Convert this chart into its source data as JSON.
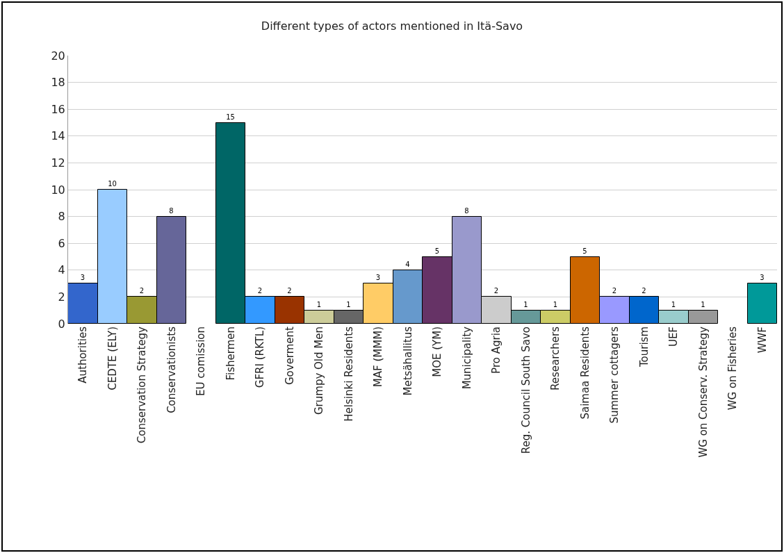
{
  "chart_data": {
    "type": "bar",
    "title": "Different types of actors mentioned in Itä-Savo",
    "categories": [
      "Authorities",
      "CEDTE (ELY)",
      "Conservation Strategy",
      "Conservationists",
      "EU comission",
      "Fishermen",
      "GFRI (RKTL)",
      "Goverment",
      "Grumpy Old Men",
      "Helsinki Residents",
      "MAF (MMM)",
      "Metsähallitus",
      "MOE (YM)",
      "Municipality",
      "Pro Agria",
      "Reg. Council South Savo",
      "Researchers",
      "Saimaa Residents",
      "Summer cottagers",
      "Tourism",
      "UEF",
      "WG on Conserv. Strategy",
      "WG on Fisheries",
      "WWF"
    ],
    "values": [
      3,
      10,
      2,
      8,
      0,
      15,
      2,
      2,
      1,
      1,
      3,
      4,
      5,
      8,
      2,
      1,
      1,
      5,
      2,
      2,
      1,
      1,
      0,
      3
    ],
    "value_labels": [
      "3",
      "10",
      "2",
      "8",
      null,
      "15",
      "2",
      "2",
      "1",
      "1",
      "3",
      "4",
      "5",
      "8",
      "2",
      "1",
      "1",
      "5",
      "2",
      "2",
      "1",
      "1",
      null,
      "3"
    ],
    "colors": [
      "#3366cc",
      "#99ccff",
      "#999933",
      "#666699",
      null,
      "#006666",
      "#3399ff",
      "#993300",
      "#cccc99",
      "#666666",
      "#ffcc66",
      "#6699cc",
      "#663366",
      "#9999cc",
      "#cccccc",
      "#669999",
      "#cccc66",
      "#cc6600",
      "#9999ff",
      "#0066cc",
      "#99cccc",
      "#999999",
      null,
      "#009999"
    ],
    "ylim": [
      0,
      20
    ],
    "yticks": [
      0,
      2,
      4,
      6,
      8,
      10,
      12,
      14,
      16,
      18,
      20
    ],
    "grid": "y",
    "legend": false
  }
}
